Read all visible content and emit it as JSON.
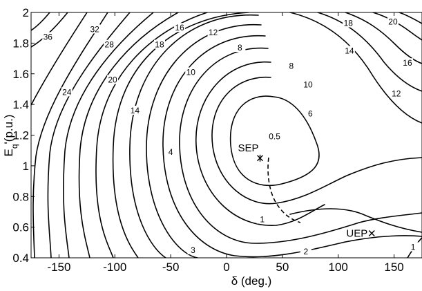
{
  "chart_data": {
    "type": "contour",
    "xlabel": "δ (deg.)",
    "ylabel": "Eq'(p.u.)",
    "xlim": [
      -175,
      175
    ],
    "ylim": [
      0.4,
      2
    ],
    "x_ticks": [
      -150,
      -100,
      -50,
      0,
      50,
      100,
      150
    ],
    "y_ticks": [
      0.4,
      0.6,
      0.8,
      1,
      1.2,
      1.4,
      1.6,
      1.8,
      2
    ],
    "x_tick_labels": [
      "-150",
      "-100",
      "-50",
      "0",
      "50",
      "100",
      "150"
    ],
    "y_tick_labels": [
      "0.4",
      "0.6",
      "0.8",
      "1",
      "1.2",
      "1.4",
      "1.6",
      "1.8",
      "2"
    ],
    "grid": false,
    "contour_labels": [
      {
        "text": "36",
        "x": -160,
        "y": 1.84
      },
      {
        "text": "32",
        "x": -118,
        "y": 1.89
      },
      {
        "text": "28",
        "x": -105,
        "y": 1.79
      },
      {
        "text": "24",
        "x": -143,
        "y": 1.48
      },
      {
        "text": "20",
        "x": -102,
        "y": 1.56
      },
      {
        "text": "18",
        "x": -60,
        "y": 1.79
      },
      {
        "text": "16",
        "x": -42,
        "y": 1.9
      },
      {
        "text": "14",
        "x": -82,
        "y": 1.36
      },
      {
        "text": "12",
        "x": -12,
        "y": 1.87
      },
      {
        "text": "10",
        "x": -32,
        "y": 1.61
      },
      {
        "text": "8",
        "x": 12,
        "y": 1.77
      },
      {
        "text": "4",
        "x": -50,
        "y": 1.09
      },
      {
        "text": "8",
        "x": 58,
        "y": 1.65
      },
      {
        "text": "10",
        "x": 73,
        "y": 1.53
      },
      {
        "text": "6",
        "x": 75,
        "y": 1.34
      },
      {
        "text": "0.5",
        "x": 43,
        "y": 1.19
      },
      {
        "text": "18",
        "x": 109,
        "y": 1.93
      },
      {
        "text": "14",
        "x": 110,
        "y": 1.75
      },
      {
        "text": "20",
        "x": 149,
        "y": 1.94
      },
      {
        "text": "16",
        "x": 162,
        "y": 1.67
      },
      {
        "text": "12",
        "x": 152,
        "y": 1.47
      },
      {
        "text": "1",
        "x": 32,
        "y": 0.65
      },
      {
        "text": "3",
        "x": -30,
        "y": 0.45
      },
      {
        "text": "2",
        "x": 71,
        "y": 0.44
      },
      {
        "text": "1",
        "x": 167,
        "y": 0.47
      }
    ],
    "points": [
      {
        "label": "SEP",
        "x": 30,
        "y": 1.05,
        "marker": "star"
      },
      {
        "label": "UEP",
        "x": 130,
        "y": 0.56,
        "marker": "x"
      }
    ]
  }
}
